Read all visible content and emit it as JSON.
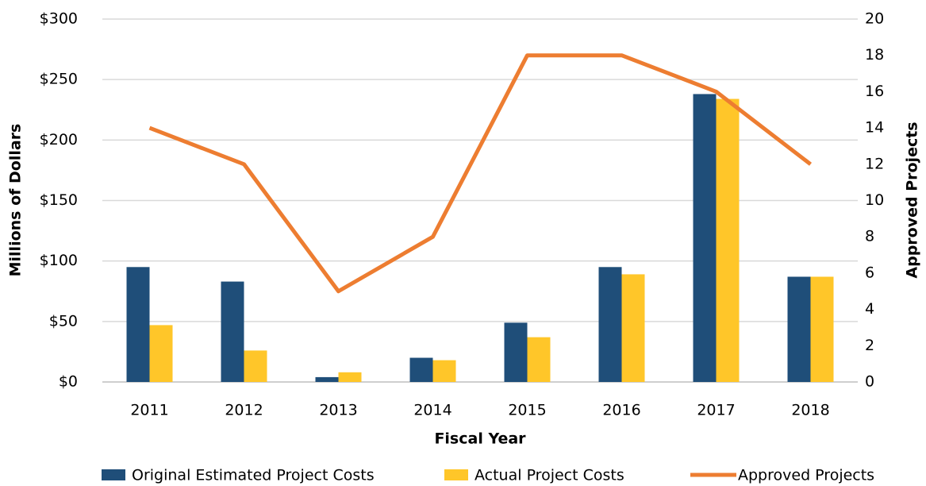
{
  "chart_data": {
    "type": "bar_line",
    "x_label": "Fiscal Year",
    "y_label": "Millions of Dollars",
    "y2_label": "Approved Projects",
    "categories": [
      "2011",
      "2012",
      "2013",
      "2014",
      "2015",
      "2016",
      "2017",
      "2018"
    ],
    "series": [
      {
        "name": "Original Estimated Project Costs",
        "type": "bar",
        "color": "#1f4e79",
        "values": [
          95,
          83,
          4,
          20,
          49,
          95,
          238,
          87
        ]
      },
      {
        "name": "Actual Project Costs",
        "type": "bar",
        "color": "#ffc629",
        "values": [
          47,
          26,
          8,
          18,
          37,
          89,
          234,
          87
        ]
      },
      {
        "name": "Approved Projects",
        "type": "line",
        "axis": "y2",
        "color": "#ed7d31",
        "values": [
          14,
          12,
          5,
          8,
          18,
          18,
          16,
          12
        ]
      }
    ],
    "ylim": [
      0,
      300
    ],
    "yticks": [
      {
        "value": 0,
        "label": "$0"
      },
      {
        "value": 50,
        "label": "$50"
      },
      {
        "value": 100,
        "label": "$100"
      },
      {
        "value": 150,
        "label": "$150"
      },
      {
        "value": 200,
        "label": "$200"
      },
      {
        "value": 250,
        "label": "$250"
      },
      {
        "value": 300,
        "label": "$300"
      }
    ],
    "y2lim": [
      0,
      20
    ],
    "y2ticks": [
      0,
      2,
      4,
      6,
      8,
      10,
      12,
      14,
      16,
      18,
      20
    ],
    "grid": true,
    "legend": "bottom"
  }
}
